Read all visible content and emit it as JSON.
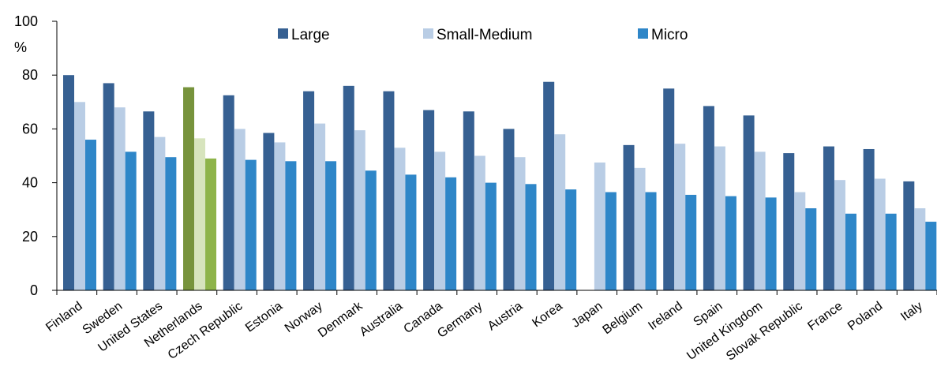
{
  "chart_data": {
    "type": "bar",
    "title": "",
    "xlabel": "",
    "ylabel": "%",
    "ylim": [
      0,
      100
    ],
    "yticks": [
      0,
      20,
      40,
      60,
      80,
      100
    ],
    "grid": false,
    "legend_position": "top-center",
    "categories": [
      "Finland",
      "Sweden",
      "United States",
      "Netherlands",
      "Czech Republic",
      "Estonia",
      "Norway",
      "Denmark",
      "Australia",
      "Canada",
      "Germany",
      "Austria",
      "Korea",
      "Japan",
      "Belgium",
      "Ireland",
      "Spain",
      "United Kingdom",
      "Slovak Republic",
      "France",
      "Poland",
      "Italy"
    ],
    "series": [
      {
        "name": "Large",
        "color": "#366092",
        "values": [
          80,
          77,
          66.5,
          75.5,
          72.5,
          58.5,
          74,
          76,
          74,
          67,
          66.5,
          60,
          77.5,
          null,
          54,
          75,
          68.5,
          65,
          51,
          53.5,
          52.5,
          40.5
        ]
      },
      {
        "name": "Small-Medium",
        "color": "#B9CDE5",
        "values": [
          70,
          68,
          57,
          56.5,
          60,
          55,
          62,
          59.5,
          53,
          51.5,
          50,
          49.5,
          58,
          47.5,
          45.5,
          54.5,
          53.5,
          51.5,
          36.5,
          41,
          41.5,
          30.5
        ]
      },
      {
        "name": "Micro",
        "color": "#2E86C8",
        "values": [
          56,
          51.5,
          49.5,
          49,
          48.5,
          48,
          48,
          44.5,
          43,
          42,
          40,
          39.5,
          37.5,
          36.5,
          36.5,
          35.5,
          35,
          34.5,
          30.5,
          28.5,
          28.5,
          25.5
        ]
      }
    ],
    "highlight": {
      "category": "Netherlands",
      "colors": [
        "#77933C",
        "#D7E4BD",
        "#8EB44A"
      ]
    }
  }
}
